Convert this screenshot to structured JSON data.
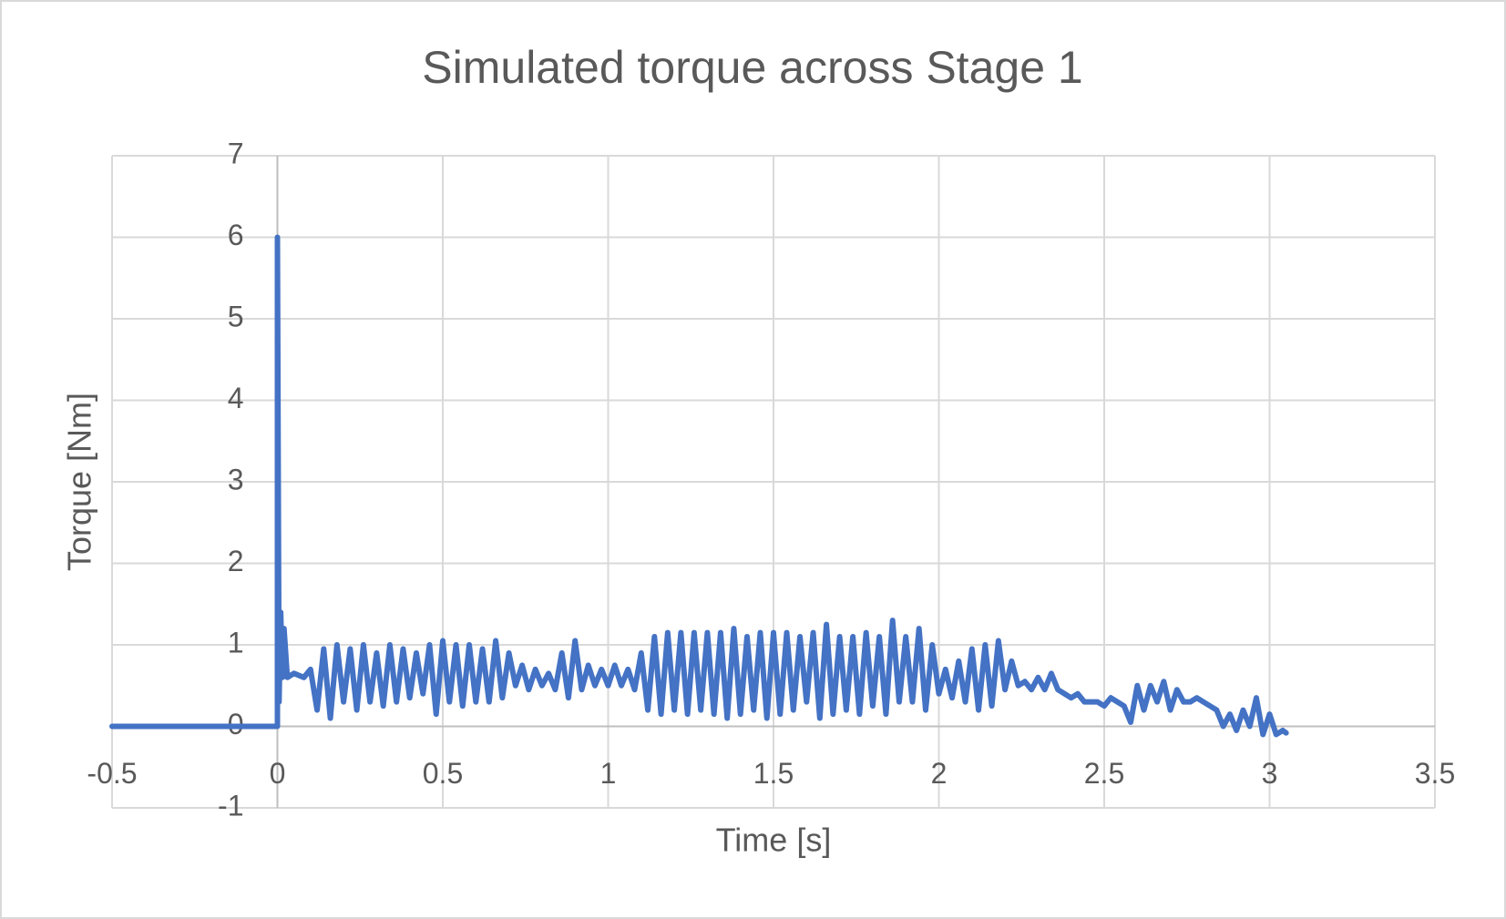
{
  "chart_data": {
    "type": "line",
    "title": "Simulated torque across Stage 1",
    "x_label": "Time [s]",
    "y_label": "Torque [Nm]",
    "color": "#4472c4",
    "grid": true,
    "xlim": [
      -0.5,
      3.5
    ],
    "xticks": [
      -0.5,
      0,
      0.5,
      1,
      1.5,
      2,
      2.5,
      3,
      3.5
    ],
    "ylim": [
      -1,
      7
    ],
    "yticks": [
      -1,
      0,
      1,
      2,
      3,
      4,
      5,
      6,
      7
    ],
    "x": [
      -0.5,
      0,
      0,
      0.005,
      0.01,
      0.015,
      0.02,
      0.03,
      0.05,
      0.08,
      0.1,
      0.12,
      0.14,
      0.16,
      0.18,
      0.2,
      0.22,
      0.24,
      0.26,
      0.28,
      0.3,
      0.32,
      0.34,
      0.36,
      0.38,
      0.4,
      0.42,
      0.44,
      0.46,
      0.48,
      0.5,
      0.52,
      0.54,
      0.56,
      0.58,
      0.6,
      0.62,
      0.64,
      0.66,
      0.68,
      0.7,
      0.72,
      0.74,
      0.76,
      0.78,
      0.8,
      0.82,
      0.84,
      0.86,
      0.88,
      0.9,
      0.92,
      0.94,
      0.96,
      0.98,
      1.0,
      1.02,
      1.04,
      1.06,
      1.08,
      1.1,
      1.12,
      1.14,
      1.16,
      1.18,
      1.2,
      1.22,
      1.24,
      1.26,
      1.28,
      1.3,
      1.32,
      1.34,
      1.36,
      1.38,
      1.4,
      1.42,
      1.44,
      1.46,
      1.48,
      1.5,
      1.52,
      1.54,
      1.56,
      1.58,
      1.6,
      1.62,
      1.64,
      1.66,
      1.68,
      1.7,
      1.72,
      1.74,
      1.76,
      1.78,
      1.8,
      1.82,
      1.84,
      1.86,
      1.88,
      1.9,
      1.92,
      1.94,
      1.96,
      1.98,
      2.0,
      2.02,
      2.04,
      2.06,
      2.08,
      2.1,
      2.12,
      2.14,
      2.16,
      2.18,
      2.2,
      2.22,
      2.24,
      2.26,
      2.28,
      2.3,
      2.32,
      2.34,
      2.36,
      2.38,
      2.4,
      2.42,
      2.44,
      2.46,
      2.48,
      2.5,
      2.52,
      2.54,
      2.56,
      2.58,
      2.6,
      2.62,
      2.64,
      2.66,
      2.68,
      2.7,
      2.72,
      2.74,
      2.76,
      2.78,
      2.8,
      2.82,
      2.84,
      2.86,
      2.88,
      2.9,
      2.92,
      2.94,
      2.96,
      2.98,
      3.0,
      3.02,
      3.04,
      3.05
    ],
    "values": [
      0,
      0,
      6,
      0.3,
      1.4,
      0.6,
      1.2,
      0.6,
      0.65,
      0.6,
      0.7,
      0.2,
      0.95,
      0.1,
      1.0,
      0.3,
      0.95,
      0.2,
      1.0,
      0.3,
      0.9,
      0.25,
      1.0,
      0.3,
      0.95,
      0.35,
      0.9,
      0.4,
      1.0,
      0.15,
      1.05,
      0.3,
      1.0,
      0.25,
      1.0,
      0.3,
      0.95,
      0.3,
      1.05,
      0.35,
      0.9,
      0.5,
      0.75,
      0.45,
      0.7,
      0.5,
      0.65,
      0.45,
      0.9,
      0.35,
      1.05,
      0.45,
      0.75,
      0.5,
      0.7,
      0.5,
      0.75,
      0.5,
      0.7,
      0.45,
      0.9,
      0.2,
      1.1,
      0.15,
      1.15,
      0.2,
      1.15,
      0.15,
      1.15,
      0.2,
      1.15,
      0.15,
      1.15,
      0.1,
      1.2,
      0.15,
      1.1,
      0.2,
      1.15,
      0.1,
      1.15,
      0.15,
      1.15,
      0.2,
      1.1,
      0.3,
      1.15,
      0.1,
      1.25,
      0.15,
      1.1,
      0.2,
      1.1,
      0.15,
      1.15,
      0.25,
      1.1,
      0.15,
      1.3,
      0.3,
      1.1,
      0.3,
      1.2,
      0.2,
      1.0,
      0.4,
      0.7,
      0.35,
      0.8,
      0.3,
      0.95,
      0.2,
      1.0,
      0.25,
      1.05,
      0.45,
      0.8,
      0.5,
      0.55,
      0.45,
      0.6,
      0.45,
      0.65,
      0.45,
      0.4,
      0.35,
      0.4,
      0.3,
      0.3,
      0.3,
      0.25,
      0.35,
      0.3,
      0.25,
      0.05,
      0.5,
      0.2,
      0.5,
      0.3,
      0.55,
      0.2,
      0.45,
      0.3,
      0.3,
      0.35,
      0.3,
      0.25,
      0.2,
      0.0,
      0.15,
      -0.05,
      0.2,
      0.0,
      0.35,
      -0.1,
      0.15,
      -0.1,
      -0.05,
      -0.08
    ]
  }
}
